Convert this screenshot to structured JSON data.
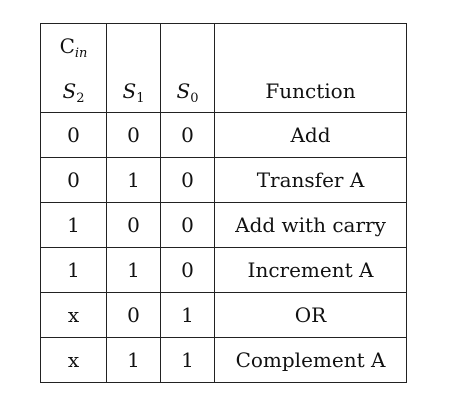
{
  "header": {
    "cin_main": "C",
    "cin_sub": "in",
    "s2_main": "S",
    "s2_sub": "2",
    "s1_main": "S",
    "s1_sub": "1",
    "s0_main": "S",
    "s0_sub": "0",
    "function": "Function"
  },
  "rows": [
    {
      "c2": "0",
      "c1": "0",
      "c0": "0",
      "fn": "Add"
    },
    {
      "c2": "0",
      "c1": "1",
      "c0": "0",
      "fn": "Transfer A"
    },
    {
      "c2": "1",
      "c1": "0",
      "c0": "0",
      "fn": "Add with carry"
    },
    {
      "c2": "1",
      "c1": "1",
      "c0": "0",
      "fn": "Increment A"
    },
    {
      "c2": "x",
      "c1": "0",
      "c0": "1",
      "fn": "OR"
    },
    {
      "c2": "x",
      "c1": "1",
      "c0": "1",
      "fn": "Complement A"
    }
  ]
}
